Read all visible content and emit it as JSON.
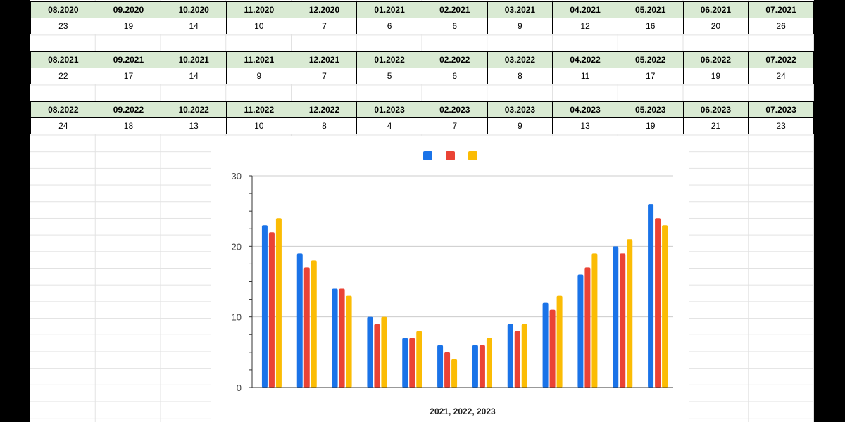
{
  "tables": [
    {
      "headers": [
        "08.2020",
        "09.2020",
        "10.2020",
        "11.2020",
        "12.2020",
        "01.2021",
        "02.2021",
        "03.2021",
        "04.2021",
        "05.2021",
        "06.2021",
        "07.2021"
      ],
      "values": [
        "23",
        "19",
        "14",
        "10",
        "7",
        "6",
        "6",
        "9",
        "12",
        "16",
        "20",
        "26"
      ]
    },
    {
      "headers": [
        "08.2021",
        "09.2021",
        "10.2021",
        "11.2021",
        "12.2021",
        "01.2022",
        "02.2022",
        "03.2022",
        "04.2022",
        "05.2022",
        "06.2022",
        "07.2022"
      ],
      "values": [
        "22",
        "17",
        "14",
        "9",
        "7",
        "5",
        "6",
        "8",
        "11",
        "17",
        "19",
        "24"
      ]
    },
    {
      "headers": [
        "08.2022",
        "09.2022",
        "10.2022",
        "11.2022",
        "12.2022",
        "01.2023",
        "02.2023",
        "03.2023",
        "04.2023",
        "05.2023",
        "06.2023",
        "07.2023"
      ],
      "values": [
        "24",
        "18",
        "13",
        "10",
        "8",
        "4",
        "7",
        "9",
        "13",
        "19",
        "21",
        "23"
      ]
    }
  ],
  "chart_data": {
    "type": "bar",
    "xlabel": "2021, 2022, 2023",
    "ylabel": "",
    "ylim": [
      0,
      30
    ],
    "yticks": [
      "0",
      "10",
      "20",
      "30"
    ],
    "grid": true,
    "legend": "top-center",
    "series": [
      {
        "color": "#1a73e8",
        "values": [
          23,
          19,
          14,
          10,
          7,
          6,
          6,
          9,
          12,
          16,
          20,
          26
        ]
      },
      {
        "color": "#ea4335",
        "values": [
          22,
          17,
          14,
          9,
          7,
          5,
          6,
          8,
          11,
          17,
          19,
          24
        ]
      },
      {
        "color": "#fbbc04",
        "values": [
          24,
          18,
          13,
          10,
          8,
          4,
          7,
          9,
          13,
          19,
          21,
          23
        ]
      }
    ]
  }
}
